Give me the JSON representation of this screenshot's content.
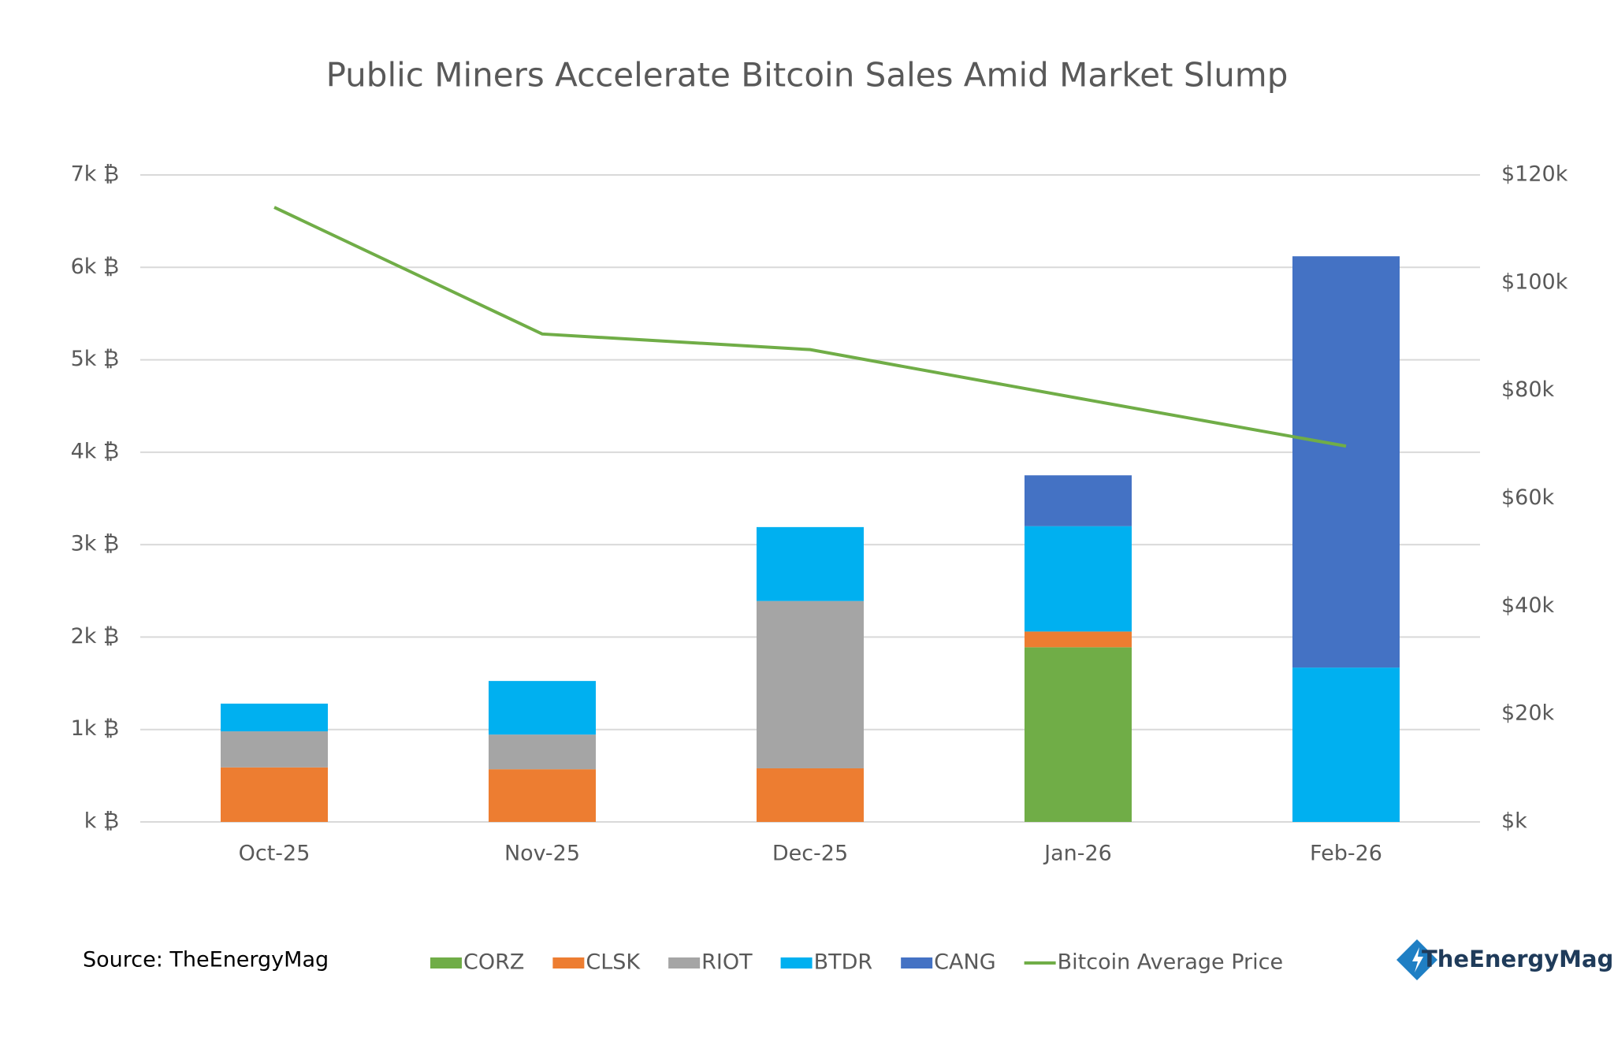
{
  "chart_data": {
    "type": "bar",
    "title": "Public Miners Accelerate Bitcoin Sales Amid Market Slump",
    "categories": [
      "Oct-25",
      "Nov-25",
      "Dec-25",
      "Jan-26",
      "Feb-26"
    ],
    "stacked": true,
    "series": [
      {
        "name": "CORZ",
        "color": "#70ad47",
        "values": [
          null,
          null,
          null,
          1890,
          null
        ]
      },
      {
        "name": "CLSK",
        "color": "#ed7d31",
        "values": [
          590,
          570,
          580,
          170,
          null
        ]
      },
      {
        "name": "RIOT",
        "color": "#a5a5a5",
        "values": [
          390,
          375,
          1810,
          null,
          null
        ]
      },
      {
        "name": "BTDR",
        "color": "#00b0f0",
        "values": [
          300,
          580,
          800,
          1140,
          1670
        ]
      },
      {
        "name": "CANG",
        "color": "#4472c4",
        "values": [
          null,
          null,
          null,
          550,
          4450
        ]
      },
      {
        "name": "Bitcoin Average Price",
        "color": "#70ad47",
        "type": "line",
        "axis": "y2",
        "values": [
          114000,
          90500,
          87600,
          78600,
          69700
        ]
      }
    ],
    "ylim": [
      0,
      7000
    ],
    "yticks": [
      {
        "value": 0,
        "label": "k ₿"
      },
      {
        "value": 1000,
        "label": "1k ₿"
      },
      {
        "value": 2000,
        "label": "2k ₿"
      },
      {
        "value": 3000,
        "label": "3k ₿"
      },
      {
        "value": 4000,
        "label": "4k ₿"
      },
      {
        "value": 5000,
        "label": "5k ₿"
      },
      {
        "value": 6000,
        "label": "6k ₿"
      },
      {
        "value": 7000,
        "label": "7k ₿"
      }
    ],
    "y2lim": [
      0,
      120000
    ],
    "y2ticks": [
      {
        "value": 0,
        "label": "$k"
      },
      {
        "value": 20000,
        "label": "$20k"
      },
      {
        "value": 40000,
        "label": "$40k"
      },
      {
        "value": 60000,
        "label": "$60k"
      },
      {
        "value": 80000,
        "label": "$80k"
      },
      {
        "value": 100000,
        "label": "$100k"
      },
      {
        "value": 120000,
        "label": "$120k"
      }
    ],
    "grid": true,
    "legend": "bottom",
    "source": "Source: TheEnergyMag",
    "logo": "TheEnergyMag"
  }
}
